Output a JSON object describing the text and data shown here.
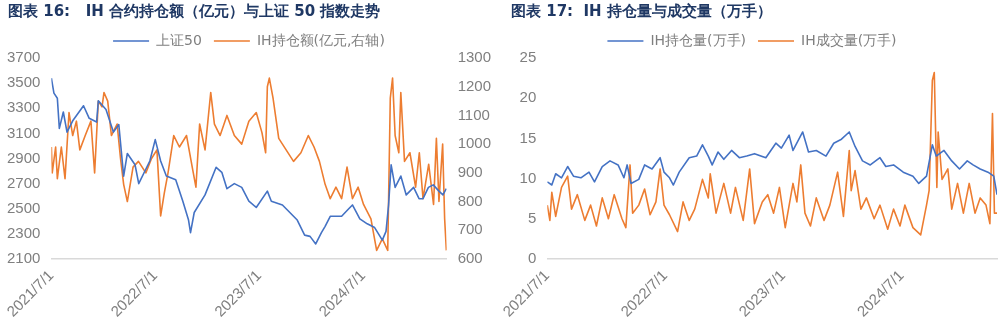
{
  "chart_data": [
    {
      "type": "line",
      "title": "图表 16:   IH 合约持仓额（亿元）与上证 50 指数走势",
      "xlim": [
        "2021-07-01",
        "2025-04-20"
      ],
      "xticks": [
        {
          "value": "2021-07-01",
          "label": "2021/7/1"
        },
        {
          "value": "2022-07-01",
          "label": "2022/7/1"
        },
        {
          "value": "2023-07-01",
          "label": "2023/7/1"
        },
        {
          "value": "2024-07-01",
          "label": "2024/7/1"
        }
      ],
      "ylim": [
        2100,
        3700
      ],
      "yticks": [
        2100,
        2300,
        2500,
        2700,
        2900,
        3100,
        3300,
        3500,
        3700
      ],
      "y2lim": [
        600,
        1300
      ],
      "y2ticks": [
        600,
        700,
        800,
        900,
        1000,
        1100,
        1200,
        1300
      ],
      "grid": false,
      "legend": "top",
      "marker": "none",
      "line_style": "solid",
      "series": [
        {
          "name": "上证50",
          "color": "#4472c4",
          "x": [
            "2021-07-01",
            "2021-07-10",
            "2021-07-22",
            "2021-07-29",
            "2021-08-12",
            "2021-08-25",
            "2021-09-14",
            "2021-10-22",
            "2021-11-11",
            "2021-12-07",
            "2021-12-13",
            "2022-01-09",
            "2022-02-04",
            "2022-02-23",
            "2022-03-12",
            "2022-03-25",
            "2022-04-21",
            "2022-05-04",
            "2022-06-12",
            "2022-07-01",
            "2022-07-20",
            "2022-08-09",
            "2022-09-11",
            "2022-10-06",
            "2022-10-26",
            "2022-11-02",
            "2022-11-15",
            "2022-12-23",
            "2023-01-31",
            "2023-02-20",
            "2023-03-10",
            "2023-04-05",
            "2023-05-01",
            "2023-05-26",
            "2023-06-21",
            "2023-07-30",
            "2023-08-13",
            "2023-09-21",
            "2023-10-17",
            "2023-11-12",
            "2023-12-08",
            "2023-12-27",
            "2024-01-16",
            "2024-02-05",
            "2024-02-18",
            "2024-03-07",
            "2024-04-16",
            "2024-05-11",
            "2024-05-24",
            "2024-06-19",
            "2024-07-15",
            "2024-08-10",
            "2024-09-06",
            "2024-09-19",
            "2024-09-28",
            "2024-10-07",
            "2024-10-21",
            "2024-11-10",
            "2024-11-29",
            "2024-12-25",
            "2025-01-13",
            "2025-01-27",
            "2025-02-15",
            "2025-03-04",
            "2025-03-24",
            "2025-04-07",
            "2025-04-19"
          ],
          "values": [
            3540,
            3420,
            3380,
            3140,
            3270,
            3110,
            3200,
            3320,
            3220,
            3190,
            3360,
            3290,
            3110,
            3170,
            2760,
            2940,
            2850,
            2700,
            2880,
            3050,
            2880,
            2760,
            2730,
            2560,
            2410,
            2310,
            2470,
            2610,
            2830,
            2790,
            2660,
            2700,
            2670,
            2560,
            2510,
            2640,
            2560,
            2530,
            2470,
            2410,
            2290,
            2280,
            2220,
            2310,
            2360,
            2440,
            2440,
            2500,
            2530,
            2420,
            2380,
            2350,
            2250,
            2320,
            2530,
            2850,
            2670,
            2760,
            2610,
            2670,
            2580,
            2580,
            2670,
            2690,
            2640,
            2610,
            2660
          ]
        },
        {
          "name": "IH持仓额(亿元,右轴)",
          "color": "#ed7d31",
          "axis": "y2",
          "x": [
            "2021-07-01",
            "2021-07-04",
            "2021-07-16",
            "2021-07-22",
            "2021-08-05",
            "2021-08-18",
            "2021-09-01",
            "2021-09-14",
            "2021-09-27",
            "2021-10-09",
            "2021-10-28",
            "2021-11-17",
            "2021-11-30",
            "2021-12-13",
            "2021-12-26",
            "2022-01-02",
            "2022-01-15",
            "2022-01-28",
            "2022-02-17",
            "2022-03-01",
            "2022-03-12",
            "2022-03-25",
            "2022-04-14",
            "2022-05-03",
            "2022-05-29",
            "2022-06-18",
            "2022-07-07",
            "2022-07-20",
            "2022-08-02",
            "2022-08-15",
            "2022-09-04",
            "2022-09-24",
            "2022-10-19",
            "2022-11-08",
            "2022-11-21",
            "2022-12-04",
            "2022-12-23",
            "2023-01-12",
            "2023-01-25",
            "2023-02-14",
            "2023-03-10",
            "2023-04-05",
            "2023-05-01",
            "2023-05-26",
            "2023-06-21",
            "2023-07-11",
            "2023-07-24",
            "2023-07-30",
            "2023-08-06",
            "2023-08-19",
            "2023-09-08",
            "2023-10-04",
            "2023-10-30",
            "2023-11-25",
            "2023-12-21",
            "2024-01-10",
            "2024-01-29",
            "2024-02-18",
            "2024-03-07",
            "2024-03-27",
            "2024-04-16",
            "2024-05-05",
            "2024-05-24",
            "2024-06-13",
            "2024-07-02",
            "2024-07-28",
            "2024-08-17",
            "2024-09-06",
            "2024-09-25",
            "2024-10-04",
            "2024-10-12",
            "2024-10-21",
            "2024-11-03",
            "2024-11-10",
            "2024-11-23",
            "2024-12-12",
            "2025-01-01",
            "2025-01-14",
            "2025-01-27",
            "2025-02-16",
            "2025-03-05",
            "2025-03-15",
            "2025-03-24",
            "2025-04-06",
            "2025-04-13",
            "2025-04-19"
          ],
          "values": [
            990,
            900,
            990,
            880,
            990,
            880,
            1110,
            1030,
            1080,
            980,
            1030,
            1080,
            900,
            1150,
            1130,
            1180,
            1150,
            1030,
            1070,
            950,
            860,
            800,
            920,
            940,
            900,
            950,
            980,
            750,
            830,
            900,
            1030,
            990,
            1030,
            920,
            850,
            1070,
            980,
            1180,
            1070,
            1030,
            1100,
            1030,
            1000,
            1080,
            1110,
            1040,
            970,
            1200,
            1230,
            1160,
            1020,
            980,
            940,
            970,
            1030,
            990,
            940,
            860,
            810,
            850,
            810,
            920,
            810,
            850,
            790,
            740,
            630,
            670,
            630,
            1160,
            1230,
            1030,
            970,
            1180,
            940,
            970,
            850,
            970,
            810,
            930,
            790,
            1020,
            800,
            1000,
            740,
            630
          ]
        }
      ]
    },
    {
      "type": "line",
      "title": "图表 17:  IH 持仓量与成交量（万手）",
      "xlim": [
        "2021-07-01",
        "2025-04-22"
      ],
      "xticks": [
        {
          "value": "2021-07-01",
          "label": "2021/7/1"
        },
        {
          "value": "2022-07-01",
          "label": "2022/7/1"
        },
        {
          "value": "2023-07-01",
          "label": "2023/7/1"
        },
        {
          "value": "2024-07-01",
          "label": "2024/7/1"
        }
      ],
      "ylim": [
        0,
        25
      ],
      "yticks": [
        0,
        5,
        10,
        15,
        20,
        25
      ],
      "grid": false,
      "legend": "top",
      "marker": "none",
      "line_style": "solid",
      "series": [
        {
          "name": "IH持仓量(万手)",
          "color": "#4472c4",
          "x": [
            "2021-07-01",
            "2021-07-15",
            "2021-07-27",
            "2021-08-14",
            "2021-09-02",
            "2021-09-20",
            "2021-10-13",
            "2021-11-07",
            "2021-11-24",
            "2021-12-18",
            "2022-01-11",
            "2022-02-05",
            "2022-02-23",
            "2022-03-05",
            "2022-03-17",
            "2022-04-10",
            "2022-04-28",
            "2022-05-21",
            "2022-06-15",
            "2022-06-27",
            "2022-07-14",
            "2022-07-26",
            "2022-08-13",
            "2022-09-13",
            "2022-10-06",
            "2022-10-24",
            "2022-11-11",
            "2022-11-23",
            "2022-12-11",
            "2022-12-29",
            "2023-01-22",
            "2023-02-15",
            "2023-03-10",
            "2023-04-03",
            "2023-05-08",
            "2023-06-08",
            "2023-06-25",
            "2023-07-19",
            "2023-07-31",
            "2023-08-30",
            "2023-09-17",
            "2023-10-11",
            "2023-11-10",
            "2023-12-04",
            "2023-12-28",
            "2024-01-21",
            "2024-02-08",
            "2024-03-02",
            "2024-03-26",
            "2024-04-25",
            "2024-05-13",
            "2024-06-06",
            "2024-07-06",
            "2024-08-05",
            "2024-08-23",
            "2024-09-16",
            "2024-10-04",
            "2024-10-16",
            "2024-11-09",
            "2024-12-03",
            "2024-12-27",
            "2025-01-20",
            "2025-02-07",
            "2025-03-01",
            "2025-03-25",
            "2025-04-12",
            "2025-04-22"
          ],
          "values": [
            9.6,
            9.2,
            10.6,
            10.1,
            11.5,
            10.3,
            10.1,
            10.8,
            9.6,
            11.5,
            12.2,
            11.7,
            10.1,
            11.7,
            9.4,
            9.9,
            11.7,
            11.2,
            12.6,
            10.8,
            10.1,
            9.2,
            10.8,
            12.6,
            12.8,
            14.2,
            12.8,
            11.7,
            13.3,
            12.4,
            13.5,
            12.6,
            12.8,
            13.1,
            12.6,
            14.4,
            13.8,
            15.4,
            13.5,
            15.8,
            13.3,
            13.5,
            12.8,
            14.4,
            14.9,
            15.8,
            14.0,
            12.2,
            11.7,
            12.6,
            11.5,
            11.7,
            10.8,
            10.3,
            9.4,
            10.3,
            14.2,
            12.8,
            13.5,
            12.2,
            11.2,
            12.2,
            11.7,
            11.2,
            10.8,
            10.3,
            8.0
          ]
        },
        {
          "name": "IH成交量(万手)",
          "color": "#ed7d31",
          "x": [
            "2021-07-01",
            "2021-07-09",
            "2021-07-15",
            "2021-07-27",
            "2021-08-14",
            "2021-09-02",
            "2021-09-14",
            "2021-10-02",
            "2021-10-25",
            "2021-11-12",
            "2021-11-30",
            "2021-12-18",
            "2022-01-06",
            "2022-01-24",
            "2022-02-17",
            "2022-03-01",
            "2022-03-14",
            "2022-03-22",
            "2022-04-10",
            "2022-04-28",
            "2022-05-15",
            "2022-06-02",
            "2022-06-15",
            "2022-06-27",
            "2022-07-14",
            "2022-08-08",
            "2022-08-25",
            "2022-09-13",
            "2022-09-30",
            "2022-10-24",
            "2022-11-11",
            "2022-11-17",
            "2022-12-05",
            "2022-12-29",
            "2023-01-19",
            "2023-02-03",
            "2023-02-27",
            "2023-03-19",
            "2023-04-03",
            "2023-04-27",
            "2023-05-14",
            "2023-06-01",
            "2023-06-19",
            "2023-07-07",
            "2023-07-31",
            "2023-08-12",
            "2023-08-24",
            "2023-09-06",
            "2023-09-23",
            "2023-10-11",
            "2023-11-04",
            "2023-11-22",
            "2023-12-16",
            "2024-01-03",
            "2024-01-21",
            "2024-01-27",
            "2024-02-08",
            "2024-02-26",
            "2024-03-14",
            "2024-04-07",
            "2024-04-25",
            "2024-05-19",
            "2024-06-06",
            "2024-06-26",
            "2024-07-11",
            "2024-08-05",
            "2024-08-29",
            "2024-09-16",
            "2024-09-24",
            "2024-10-04",
            "2024-10-10",
            "2024-10-18",
            "2024-10-22",
            "2024-11-03",
            "2024-11-21",
            "2024-12-03",
            "2024-12-21",
            "2025-01-08",
            "2025-01-26",
            "2025-02-13",
            "2025-03-01",
            "2025-03-19",
            "2025-03-31",
            "2025-04-08",
            "2025-04-14",
            "2025-04-22"
          ],
          "values": [
            6.7,
            4.8,
            8.3,
            5.3,
            8.9,
            10.3,
            6.2,
            8.0,
            4.8,
            6.7,
            4.1,
            7.6,
            5.0,
            8.0,
            5.0,
            3.9,
            11.7,
            5.7,
            6.7,
            8.7,
            5.5,
            7.1,
            11.2,
            6.7,
            5.5,
            3.4,
            7.1,
            4.8,
            6.2,
            9.9,
            7.6,
            10.6,
            5.7,
            9.4,
            5.7,
            8.9,
            4.8,
            11.2,
            4.4,
            7.1,
            8.0,
            5.7,
            8.9,
            3.9,
            9.4,
            7.1,
            11.7,
            5.7,
            4.1,
            7.6,
            4.8,
            6.7,
            10.8,
            5.3,
            13.5,
            8.5,
            11.0,
            6.2,
            7.6,
            5.0,
            6.7,
            3.7,
            6.2,
            4.1,
            6.7,
            3.9,
            3.0,
            6.7,
            8.5,
            22.2,
            23.2,
            8.9,
            15.8,
            9.9,
            11.2,
            6.2,
            9.4,
            5.7,
            9.4,
            5.7,
            7.6,
            6.7,
            4.4,
            18.1,
            5.7,
            5.7
          ]
        }
      ]
    }
  ]
}
